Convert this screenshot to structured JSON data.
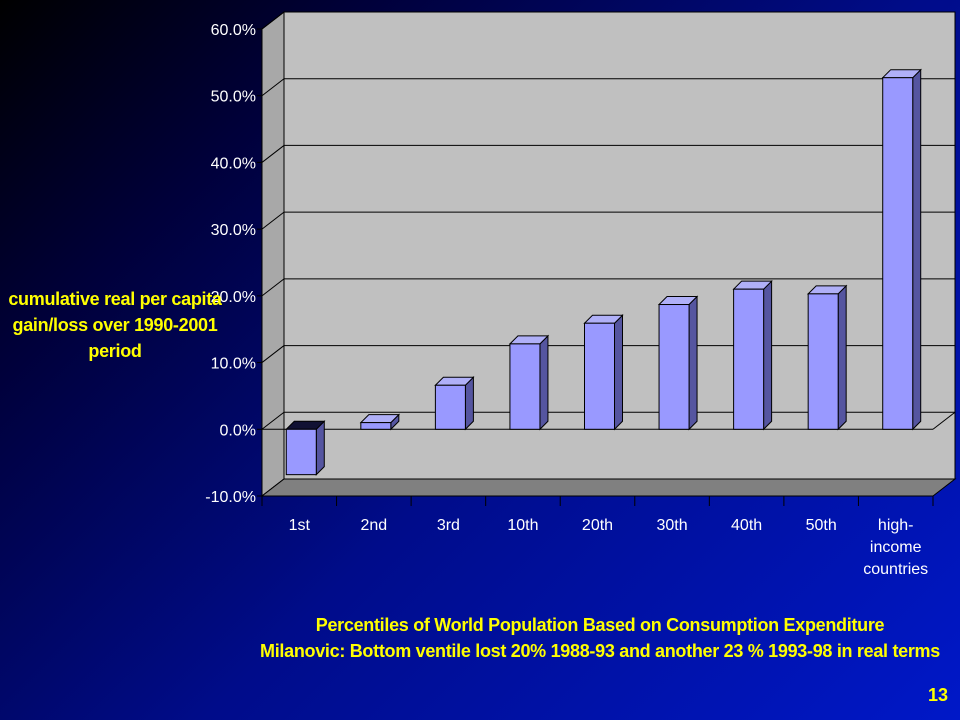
{
  "chart_data": {
    "type": "bar",
    "categories": [
      "1st",
      "2nd",
      "3rd",
      "10th",
      "20th",
      "30th",
      "40th",
      "50th",
      "high-income countries"
    ],
    "category_lines": [
      [
        "1st"
      ],
      [
        "2nd"
      ],
      [
        "3rd"
      ],
      [
        "10th"
      ],
      [
        "20th"
      ],
      [
        "30th"
      ],
      [
        "40th"
      ],
      [
        "50th"
      ],
      [
        "high-",
        "income",
        "countries"
      ]
    ],
    "values": [
      -6.8,
      1.0,
      6.6,
      12.8,
      15.9,
      18.7,
      21.0,
      20.3,
      52.7
    ],
    "value_unit": "percent",
    "ylim": [
      -10,
      60
    ],
    "yticks": [
      "-10.0%",
      "0.0%",
      "10.0%",
      "20.0%",
      "30.0%",
      "40.0%",
      "50.0%",
      "60.0%"
    ],
    "ylabel_lines": [
      "cumulative real per capita",
      "gain/loss over 1990-2001",
      "period"
    ],
    "xlabel_lines": [
      "Percentiles of World Population Based on Consumption Expenditure",
      "Milanovic: Bottom ventile lost 20% 1988-93 and another 23 % 1993-98 in real terms"
    ],
    "grid": true,
    "style": "3d-column",
    "colors": {
      "bar_front": "#9999ff",
      "bar_side": "#5555a0",
      "bar_top": "#b0b0f8",
      "plot_wall": "#c0c0c0",
      "floor": "#808080",
      "label_text": "#ffff00",
      "tick_text": "#ffffff"
    }
  },
  "slide_number": "13"
}
